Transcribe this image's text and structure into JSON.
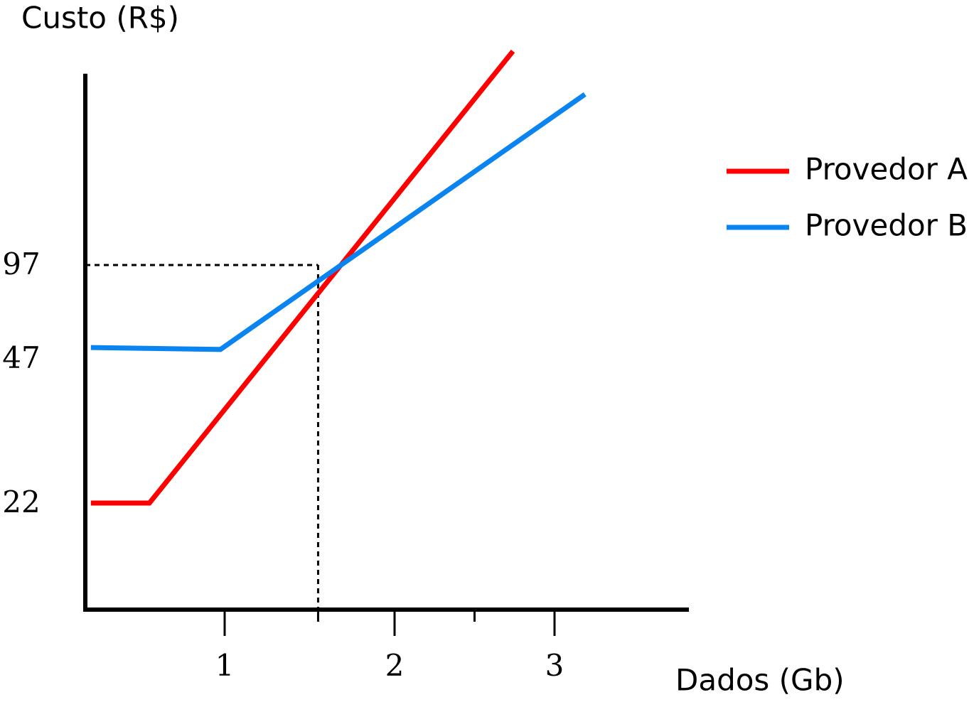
{
  "chart_data": {
    "type": "line",
    "y_label": "Custo (R$)",
    "x_label": "Dados (Gb)",
    "xlim": [
      0,
      3.84
    ],
    "ylim": [
      0,
      199
    ],
    "xticks": [
      1,
      2,
      3
    ],
    "xminorticks": [
      1.55,
      2.5
    ],
    "yticks": [
      22,
      47,
      97
    ],
    "reference": {
      "x": 1.55,
      "y": 97
    },
    "series": [
      {
        "name": "Provedor A",
        "color": "#ff0000",
        "x": [
          0.04,
          0.46,
          2.74
        ],
        "values": [
          22,
          22,
          211
        ]
      },
      {
        "name": "Provedor B",
        "color": "#0a84f0",
        "x": [
          0.04,
          0.97,
          3.19
        ],
        "values": [
          53,
          52,
          188
        ]
      }
    ],
    "legend": "right"
  }
}
